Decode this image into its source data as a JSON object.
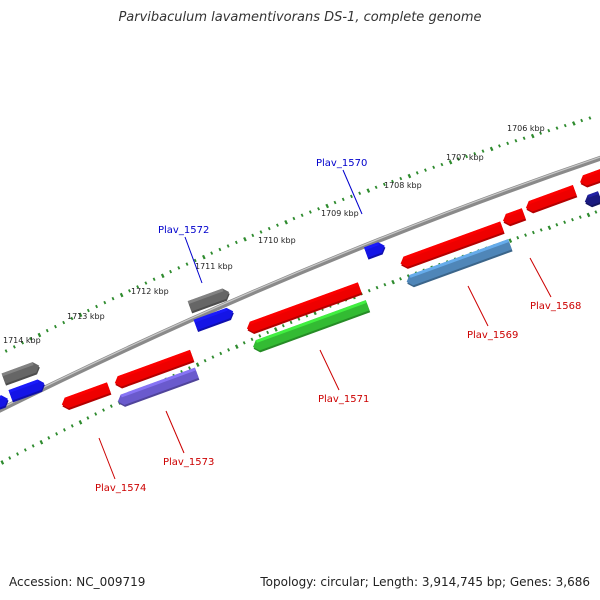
{
  "title": "Parvibaculum lavamentivorans DS-1, complete genome",
  "footer": {
    "accession": "Accession: NC_009719",
    "topology": "Topology: circular; Length: 3,914,745 bp; Genes: 3,686"
  },
  "colors": {
    "backbone": "#8a8a8a",
    "scale": "#2e8b2e",
    "forward_label": "#0000cc",
    "reverse_label": "#cc0000",
    "red": "#ee0000",
    "blue": "#1414e6",
    "gray": "#666666",
    "green": "#33bb33",
    "steelblue": "#4f86b8",
    "purple": "#6a5acd",
    "navy": "#1a1a80"
  },
  "ticks": [
    {
      "label": "1706 kbp"
    },
    {
      "label": "1707 kbp"
    },
    {
      "label": "1708 kbp"
    },
    {
      "label": "1709 kbp"
    },
    {
      "label": "1710 kbp"
    },
    {
      "label": "1711 kbp"
    },
    {
      "label": "1712 kbp"
    },
    {
      "label": "1713 kbp"
    },
    {
      "label": "1714 kbp"
    }
  ],
  "genes": [
    {
      "label": "Plav_1570",
      "strand": "forward",
      "color": "blue"
    },
    {
      "label": "Plav_1572",
      "strand": "forward",
      "color": "gray"
    },
    {
      "label": "",
      "strand": "forward",
      "color": "blue"
    },
    {
      "label": "",
      "strand": "forward",
      "color": "gray"
    },
    {
      "label": "",
      "strand": "forward",
      "color": "blue"
    },
    {
      "label": "Plav_1568",
      "strand": "reverse",
      "color": "red"
    },
    {
      "label": "Plav_1569",
      "strand": "reverse",
      "color": "red"
    },
    {
      "label": "Plav_1571",
      "strand": "reverse",
      "color": "red"
    },
    {
      "label": "Plav_1573",
      "strand": "reverse",
      "color": "red"
    },
    {
      "label": "Plav_1574",
      "strand": "reverse",
      "color": "red"
    },
    {
      "label": "",
      "strand": "reverse",
      "color": "red"
    },
    {
      "label": "",
      "strand": "reverse",
      "color": "red"
    },
    {
      "label": "",
      "strand": "reverse",
      "color": "steelblue"
    },
    {
      "label": "",
      "strand": "reverse",
      "color": "green"
    },
    {
      "label": "",
      "strand": "reverse",
      "color": "purple"
    },
    {
      "label": "",
      "strand": "reverse",
      "color": "navy"
    }
  ]
}
